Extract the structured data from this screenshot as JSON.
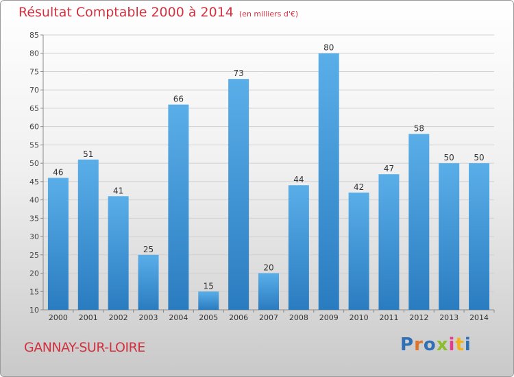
{
  "title": "Résultat Comptable 2000 à 2014",
  "unit": "(en milliers d'€)",
  "commune": "GANNAY-SUR-LOIRE",
  "logo": {
    "text": "Proxiti",
    "colors": [
      "#2f6fb4",
      "#e0732a",
      "#2f6fb4",
      "#8bbd2e",
      "#e73a8c",
      "#f0b21c",
      "#2f6fb4"
    ]
  },
  "colors": {
    "bar_top": "#5aaee8",
    "bar_bottom": "#2a7cc0",
    "title": "#d2323f"
  },
  "chart_data": {
    "type": "bar",
    "title": "Résultat Comptable 2000 à 2014 (en milliers d'€)",
    "xlabel": "",
    "ylabel": "",
    "categories": [
      "2000",
      "2001",
      "2002",
      "2003",
      "2004",
      "2005",
      "2006",
      "2007",
      "2008",
      "2009",
      "2010",
      "2011",
      "2012",
      "2013",
      "2014"
    ],
    "values": [
      46,
      51,
      41,
      25,
      66,
      15,
      73,
      20,
      44,
      80,
      42,
      47,
      58,
      50,
      50
    ],
    "ylim": [
      10,
      85
    ],
    "yticks": [
      10,
      15,
      20,
      25,
      30,
      35,
      40,
      45,
      50,
      55,
      60,
      65,
      70,
      75,
      80,
      85
    ],
    "grid": true
  }
}
